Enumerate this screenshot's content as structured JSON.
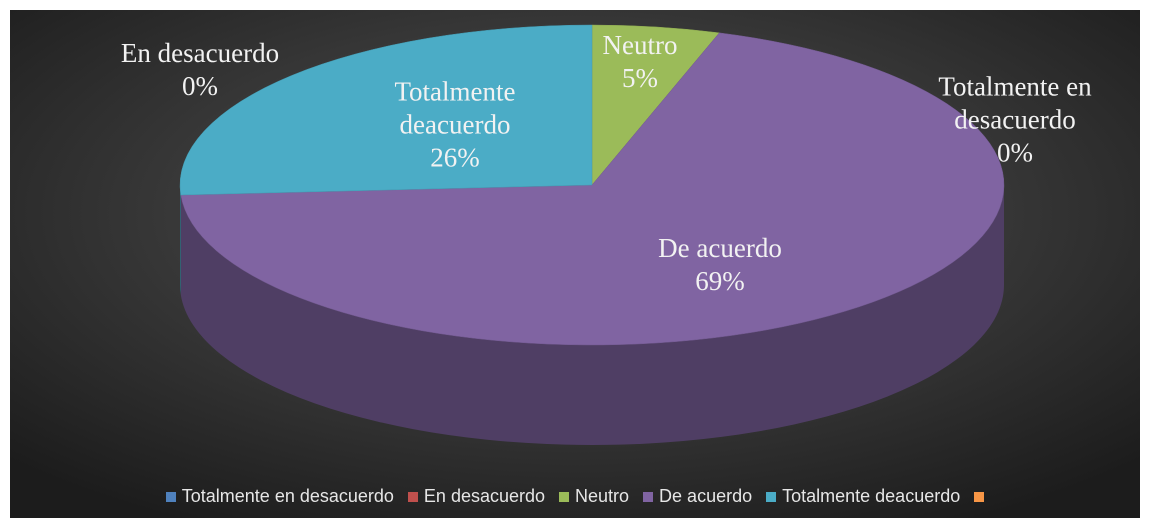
{
  "chart_data": {
    "type": "pie3d",
    "categories": [
      "Totalmente en desacuerdo",
      "En desacuerdo",
      "Neutro",
      "De acuerdo",
      "Totalmente deacuerdo",
      null
    ],
    "values": [
      0,
      0,
      5,
      69,
      26,
      0
    ],
    "value_labels": [
      "0%",
      "0%",
      "5%",
      "69%",
      "26%",
      null
    ],
    "colors": [
      "#4f81bd",
      "#c0504d",
      "#9bbb59",
      "#8064a2",
      "#4bacc6",
      "#f79646"
    ],
    "legend": "bottom"
  }
}
